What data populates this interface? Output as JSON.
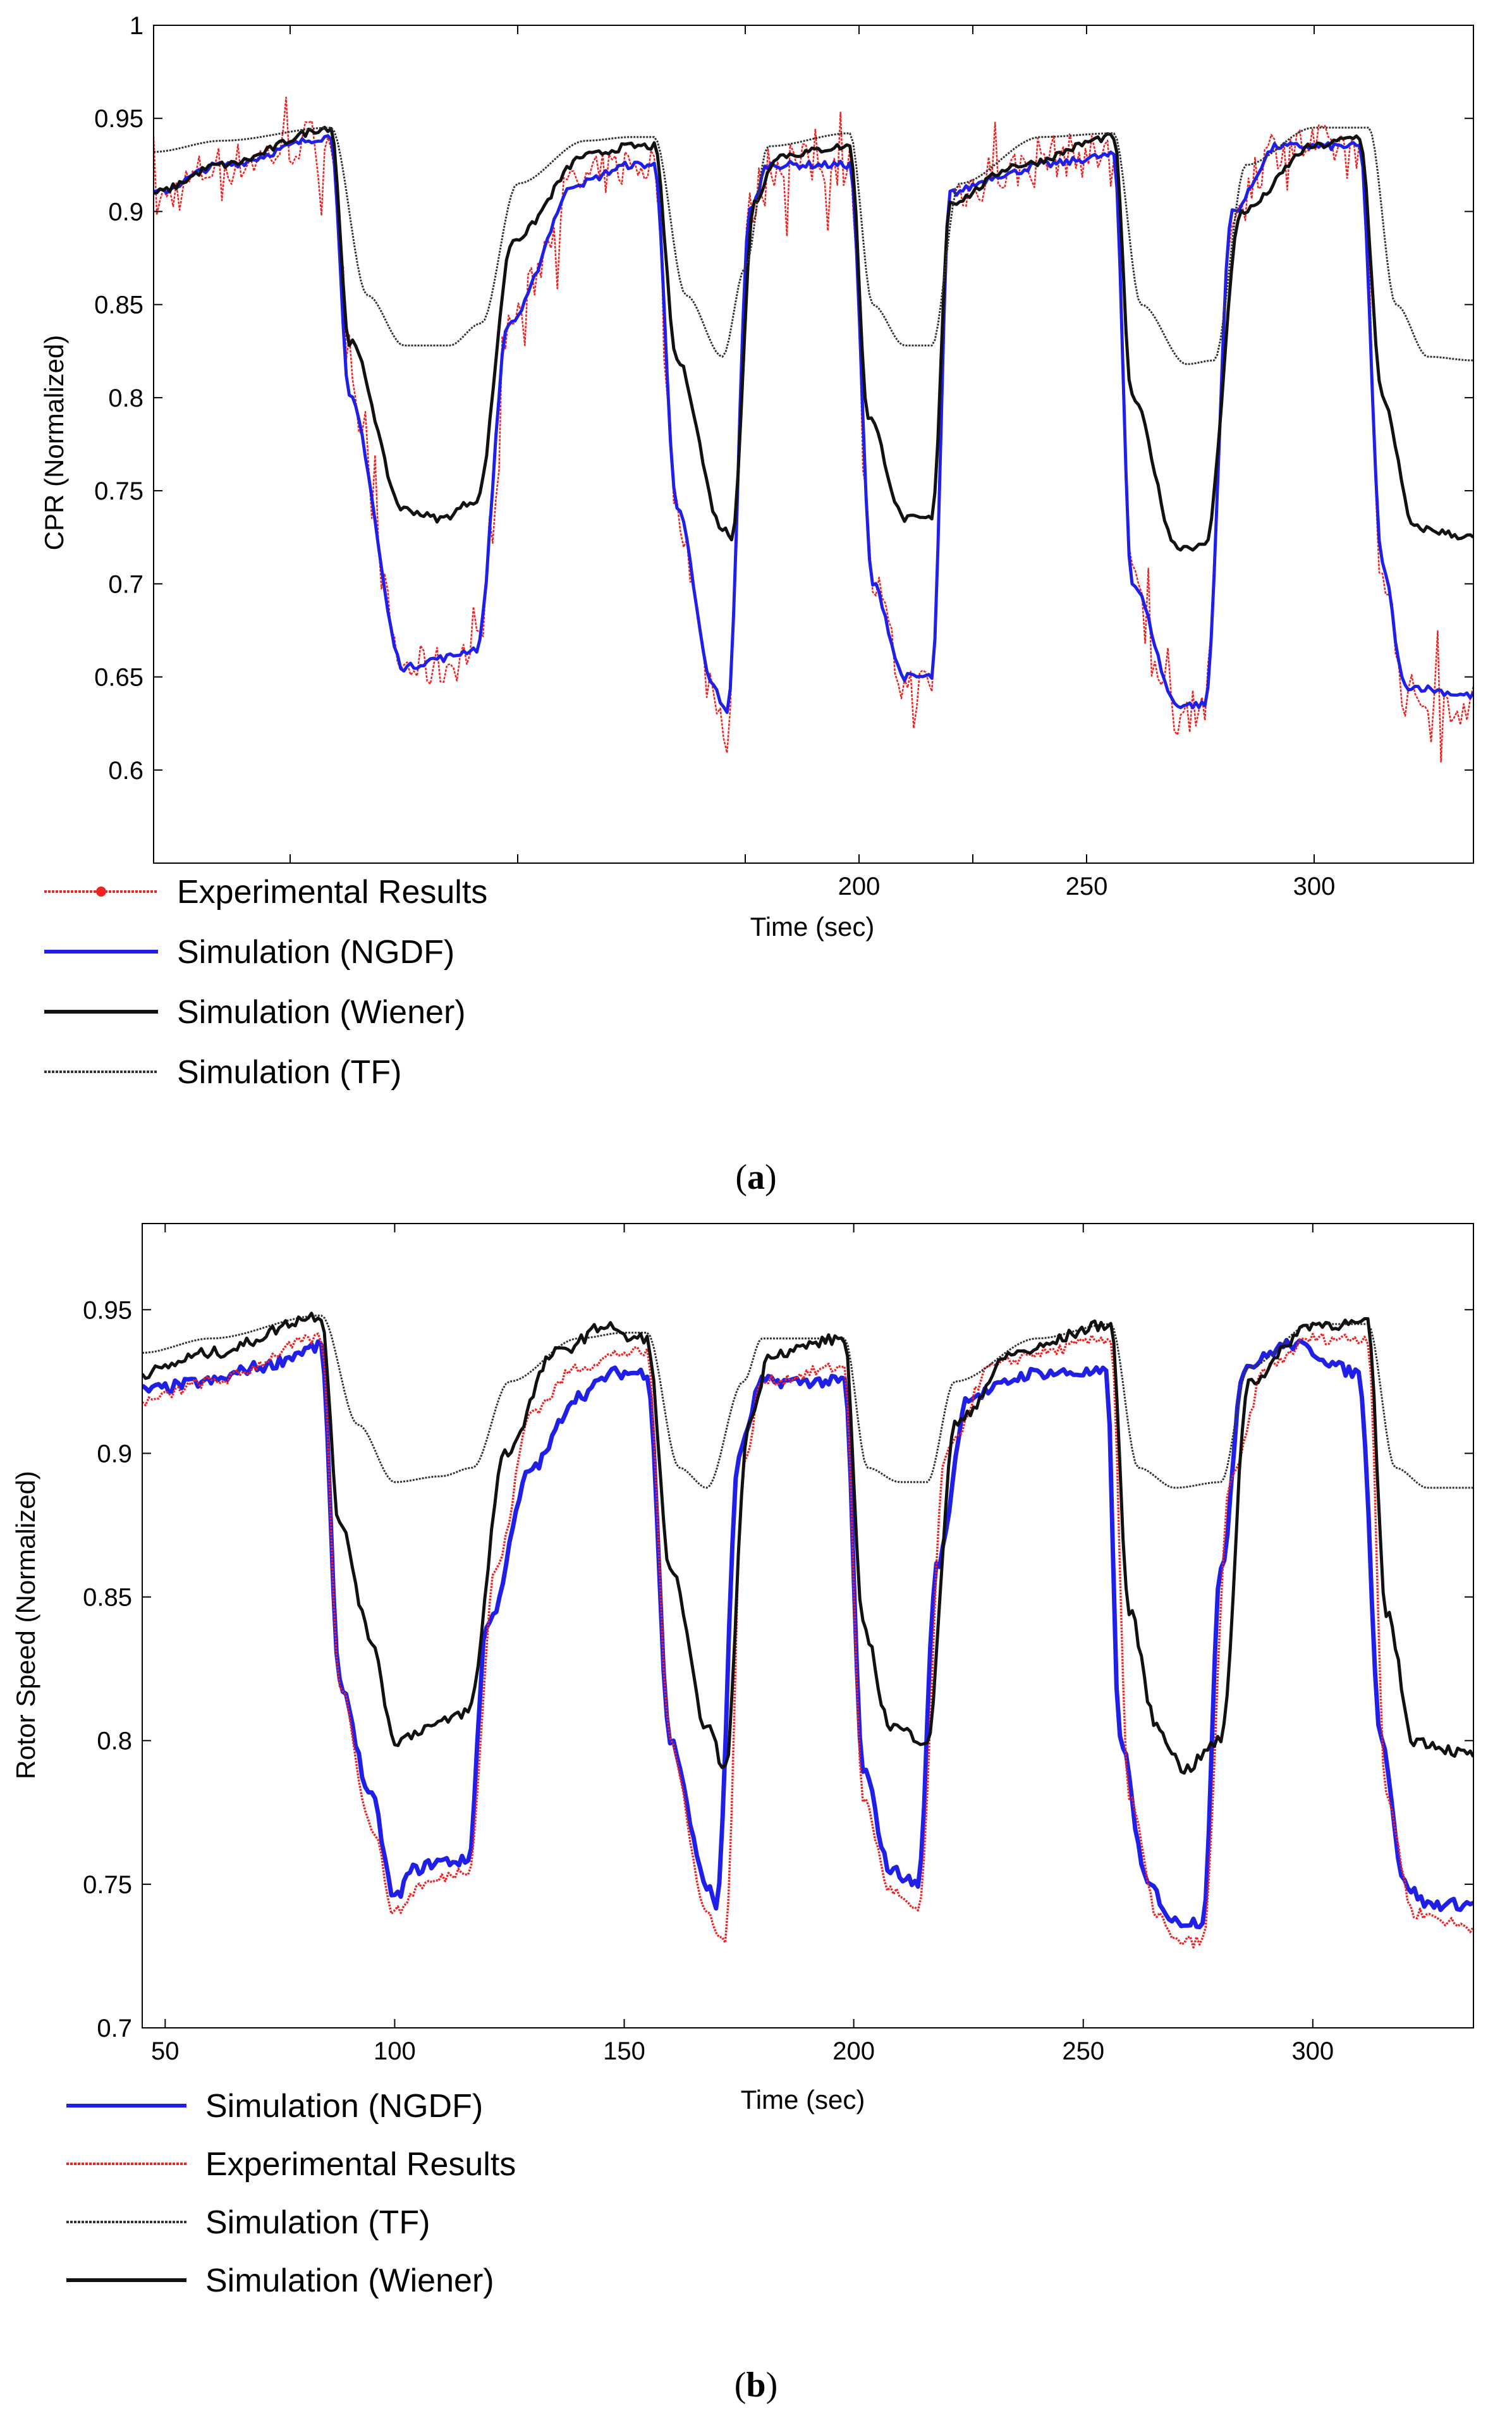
{
  "chart_data": [
    {
      "type": "line",
      "panel_label": "a",
      "title": "",
      "xlabel": "Time (sec)",
      "ylabel": "CPR (Normalized)",
      "xlim": [
        45,
        335
      ],
      "ylim": [
        0.55,
        1.0
      ],
      "x_ticks": [
        "200",
        "250",
        "300"
      ],
      "y_ticks": [
        "0.6",
        "0.65",
        "0.7",
        "0.75",
        "0.8",
        "0.85",
        "0.9",
        "0.95",
        "1"
      ],
      "grid": false,
      "legend_placement": "below-left",
      "legend": [
        "Experimental Results",
        "Simulation (NGDF)",
        "Simulation (Wiener)",
        "Simulation (TF)"
      ],
      "series": [
        {
          "name": "Experimental Results",
          "color": "#ee2222",
          "style": "noisy-dotted",
          "x": [
            45,
            60,
            84,
            88,
            100,
            108,
            116,
            123,
            138,
            150,
            155,
            160,
            168,
            171,
            176,
            180,
            198,
            203,
            210,
            216,
            220,
            232,
            240,
            256,
            260,
            270,
            276,
            282,
            292,
            310,
            315,
            320,
            335
          ],
          "y": [
            0.905,
            0.925,
            0.94,
            0.8,
            0.655,
            0.655,
            0.665,
            0.84,
            0.915,
            0.925,
            0.925,
            0.74,
            0.64,
            0.62,
            0.9,
            0.925,
            0.925,
            0.7,
            0.645,
            0.645,
            0.91,
            0.92,
            0.93,
            0.93,
            0.7,
            0.63,
            0.635,
            0.9,
            0.935,
            0.935,
            0.71,
            0.64,
            0.635
          ]
        },
        {
          "name": "Simulation (NGDF)",
          "color": "#1f1fe8",
          "style": "solid",
          "x": [
            45,
            60,
            84,
            88,
            100,
            108,
            116,
            123,
            138,
            150,
            155,
            160,
            168,
            171,
            176,
            180,
            198,
            203,
            210,
            216,
            220,
            232,
            240,
            256,
            260,
            270,
            276,
            282,
            292,
            310,
            315,
            320,
            335
          ],
          "y": [
            0.91,
            0.925,
            0.94,
            0.8,
            0.655,
            0.66,
            0.665,
            0.84,
            0.915,
            0.925,
            0.925,
            0.74,
            0.645,
            0.63,
            0.9,
            0.925,
            0.925,
            0.7,
            0.65,
            0.65,
            0.91,
            0.92,
            0.925,
            0.93,
            0.7,
            0.635,
            0.635,
            0.9,
            0.935,
            0.935,
            0.71,
            0.645,
            0.64
          ]
        },
        {
          "name": "Simulation (Wiener)",
          "color": "#111111",
          "style": "solid",
          "x": [
            45,
            60,
            84,
            88,
            100,
            108,
            116,
            124,
            140,
            150,
            155,
            160,
            170,
            172,
            177,
            182,
            198,
            202,
            210,
            216,
            220,
            235,
            256,
            260,
            270,
            276,
            284,
            300,
            310,
            315,
            322,
            335
          ],
          "y": [
            0.91,
            0.925,
            0.945,
            0.83,
            0.74,
            0.735,
            0.745,
            0.885,
            0.93,
            0.935,
            0.935,
            0.82,
            0.73,
            0.725,
            0.905,
            0.93,
            0.935,
            0.79,
            0.735,
            0.735,
            0.905,
            0.925,
            0.94,
            0.8,
            0.72,
            0.72,
            0.9,
            0.935,
            0.94,
            0.8,
            0.73,
            0.725
          ]
        },
        {
          "name": "Simulation (TF)",
          "color": "#333333",
          "style": "dotted",
          "x": [
            45,
            60,
            84,
            92,
            100,
            110,
            117,
            125,
            140,
            150,
            155,
            162,
            170,
            175,
            180,
            198,
            203,
            210,
            216,
            222,
            240,
            256,
            262,
            272,
            278,
            285,
            300,
            312,
            318,
            325,
            335
          ],
          "y": [
            0.932,
            0.938,
            0.945,
            0.855,
            0.828,
            0.828,
            0.84,
            0.915,
            0.938,
            0.94,
            0.94,
            0.855,
            0.822,
            0.87,
            0.935,
            0.942,
            0.85,
            0.828,
            0.828,
            0.915,
            0.94,
            0.942,
            0.85,
            0.818,
            0.82,
            0.925,
            0.945,
            0.945,
            0.85,
            0.822,
            0.82
          ]
        }
      ]
    },
    {
      "type": "line",
      "panel_label": "b",
      "title": "",
      "xlabel": "Time (sec)",
      "ylabel": "Rotor Speed (Normalized)",
      "xlim": [
        45,
        335
      ],
      "ylim": [
        0.7,
        0.98
      ],
      "x_ticks": [
        "50",
        "100",
        "150",
        "200",
        "250",
        "300"
      ],
      "y_ticks": [
        "0.7",
        "0.75",
        "0.8",
        "0.85",
        "0.9",
        "0.95"
      ],
      "grid": false,
      "legend_placement": "below-left",
      "legend": [
        "Simulation (NGDF)",
        "Experimental Results",
        "Simulation (TF)",
        "Simulation (Wiener)"
      ],
      "series": [
        {
          "name": "Simulation (NGDF)",
          "color": "#1f1fe8",
          "style": "solid",
          "x": [
            45,
            60,
            70,
            84,
            88,
            95,
            100,
            104,
            110,
            116,
            120,
            130,
            140,
            148,
            155,
            160,
            168,
            170,
            175,
            180,
            198,
            202,
            208,
            214,
            218,
            225,
            240,
            255,
            258,
            264,
            270,
            276,
            280,
            285,
            295,
            310,
            315,
            320,
            325,
            335
          ],
          "y": [
            0.922,
            0.925,
            0.93,
            0.937,
            0.82,
            0.78,
            0.745,
            0.755,
            0.758,
            0.758,
            0.84,
            0.895,
            0.92,
            0.928,
            0.928,
            0.8,
            0.75,
            0.742,
            0.9,
            0.925,
            0.925,
            0.79,
            0.755,
            0.75,
            0.86,
            0.92,
            0.928,
            0.928,
            0.8,
            0.75,
            0.737,
            0.737,
            0.86,
            0.93,
            0.938,
            0.928,
            0.8,
            0.75,
            0.743,
            0.743
          ]
        },
        {
          "name": "Experimental Results",
          "color": "#ee2222",
          "style": "dotted",
          "x": [
            45,
            60,
            84,
            88,
            95,
            100,
            106,
            116,
            122,
            130,
            140,
            150,
            155,
            160,
            168,
            172,
            176,
            180,
            198,
            202,
            208,
            214,
            220,
            230,
            240,
            256,
            260,
            266,
            270,
            276,
            282,
            290,
            300,
            312,
            316,
            322,
            335
          ],
          "y": [
            0.918,
            0.925,
            0.94,
            0.82,
            0.77,
            0.74,
            0.75,
            0.755,
            0.86,
            0.915,
            0.93,
            0.935,
            0.935,
            0.8,
            0.74,
            0.73,
            0.895,
            0.925,
            0.93,
            0.78,
            0.748,
            0.74,
            0.9,
            0.93,
            0.935,
            0.94,
            0.78,
            0.74,
            0.73,
            0.73,
            0.89,
            0.93,
            0.94,
            0.94,
            0.78,
            0.74,
            0.735
          ]
        },
        {
          "name": "Simulation (TF)",
          "color": "#333333",
          "style": "dotted",
          "x": [
            45,
            60,
            84,
            92,
            100,
            110,
            117,
            125,
            140,
            150,
            155,
            162,
            168,
            176,
            180,
            198,
            203,
            210,
            216,
            222,
            240,
            256,
            262,
            270,
            280,
            286,
            300,
            312,
            318,
            325,
            335
          ],
          "y": [
            0.935,
            0.94,
            0.948,
            0.91,
            0.89,
            0.892,
            0.895,
            0.925,
            0.94,
            0.942,
            0.942,
            0.895,
            0.888,
            0.925,
            0.94,
            0.94,
            0.895,
            0.89,
            0.89,
            0.925,
            0.94,
            0.945,
            0.895,
            0.888,
            0.89,
            0.93,
            0.945,
            0.945,
            0.895,
            0.888,
            0.888
          ]
        },
        {
          "name": "Simulation (Wiener)",
          "color": "#111111",
          "style": "solid",
          "x": [
            45,
            60,
            84,
            88,
            95,
            100,
            108,
            116,
            124,
            135,
            147,
            150,
            155,
            160,
            168,
            172,
            177,
            182,
            198,
            202,
            208,
            216,
            222,
            235,
            256,
            260,
            266,
            272,
            280,
            286,
            300,
            312,
            316,
            322,
            335
          ],
          "y": [
            0.928,
            0.935,
            0.948,
            0.875,
            0.835,
            0.8,
            0.805,
            0.81,
            0.9,
            0.935,
            0.945,
            0.94,
            0.94,
            0.86,
            0.805,
            0.79,
            0.91,
            0.935,
            0.94,
            0.84,
            0.805,
            0.8,
            0.91,
            0.935,
            0.945,
            0.845,
            0.805,
            0.79,
            0.8,
            0.925,
            0.945,
            0.945,
            0.845,
            0.8,
            0.795
          ]
        }
      ]
    }
  ]
}
